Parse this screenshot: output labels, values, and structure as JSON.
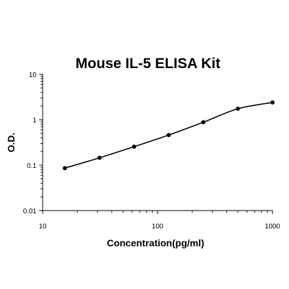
{
  "chart_data": {
    "type": "scatter",
    "title": "Mouse IL-5 ELISA Kit",
    "xlabel": "Concentration(pg/ml)",
    "ylabel": "O.D.",
    "x_scale": "log",
    "y_scale": "log",
    "xlim": [
      10,
      1000
    ],
    "ylim": [
      0.01,
      10
    ],
    "x_ticks": [
      "10",
      "100",
      "1000"
    ],
    "y_ticks": [
      "0.01",
      "0.1",
      "1",
      "10"
    ],
    "grid": false,
    "series": [
      {
        "x": [
          15.6,
          31.25,
          62.5,
          125,
          250,
          500,
          1000
        ],
        "y": [
          0.086,
          0.145,
          0.255,
          0.46,
          0.88,
          1.75,
          2.4
        ]
      }
    ],
    "fit_curve": true
  }
}
